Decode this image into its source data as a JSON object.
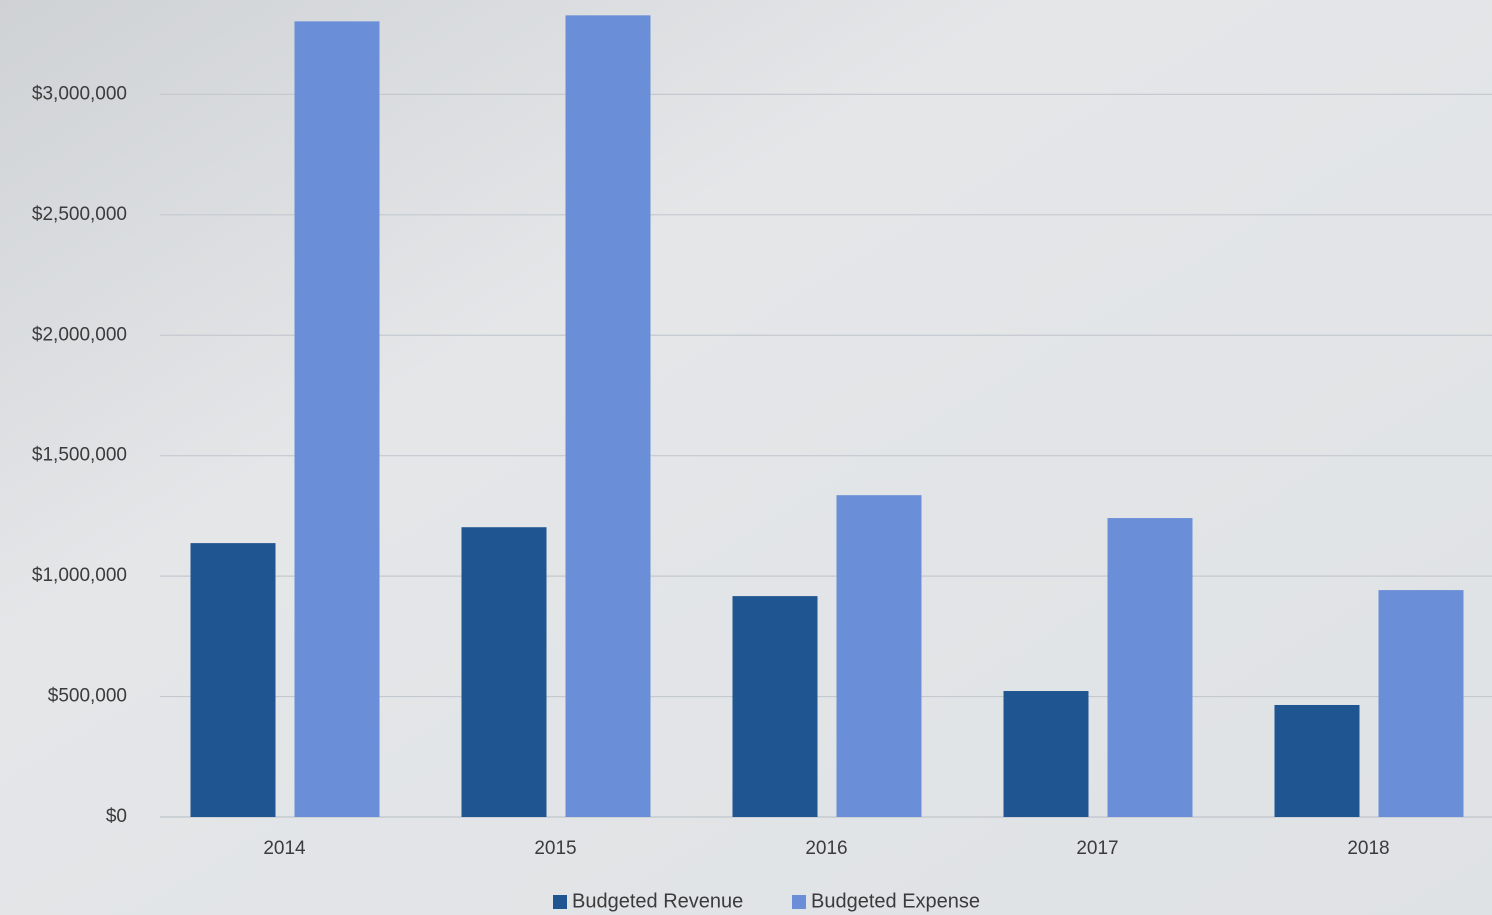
{
  "chart_data": {
    "type": "bar",
    "categories": [
      "2014",
      "2015",
      "2016",
      "2017",
      "2018"
    ],
    "series": [
      {
        "name": "Budgeted Revenue",
        "color": "#1f5591",
        "values": [
          1137000,
          1203000,
          917000,
          523000,
          465000
        ]
      },
      {
        "name": "Budgeted Expense",
        "color": "#6a8fd8",
        "values": [
          3303000,
          3328000,
          1336000,
          1241000,
          942000
        ]
      }
    ],
    "ylim": [
      0,
      3400000
    ],
    "yticks": [
      0,
      {
        "value": 0,
        "label": "$0"
      },
      {
        "value": 500000,
        "label": "$500,000"
      },
      {
        "value": 1000000,
        "label": "$1,000,000"
      },
      {
        "value": 1500000,
        "label": "$1,500,000"
      },
      {
        "value": 2000000,
        "label": "$2,000,000"
      },
      {
        "value": 2500000,
        "label": "$2,500,000"
      },
      {
        "value": 3000000,
        "label": "$3,000,000"
      }
    ],
    "grid": true,
    "legend": "bottom"
  }
}
